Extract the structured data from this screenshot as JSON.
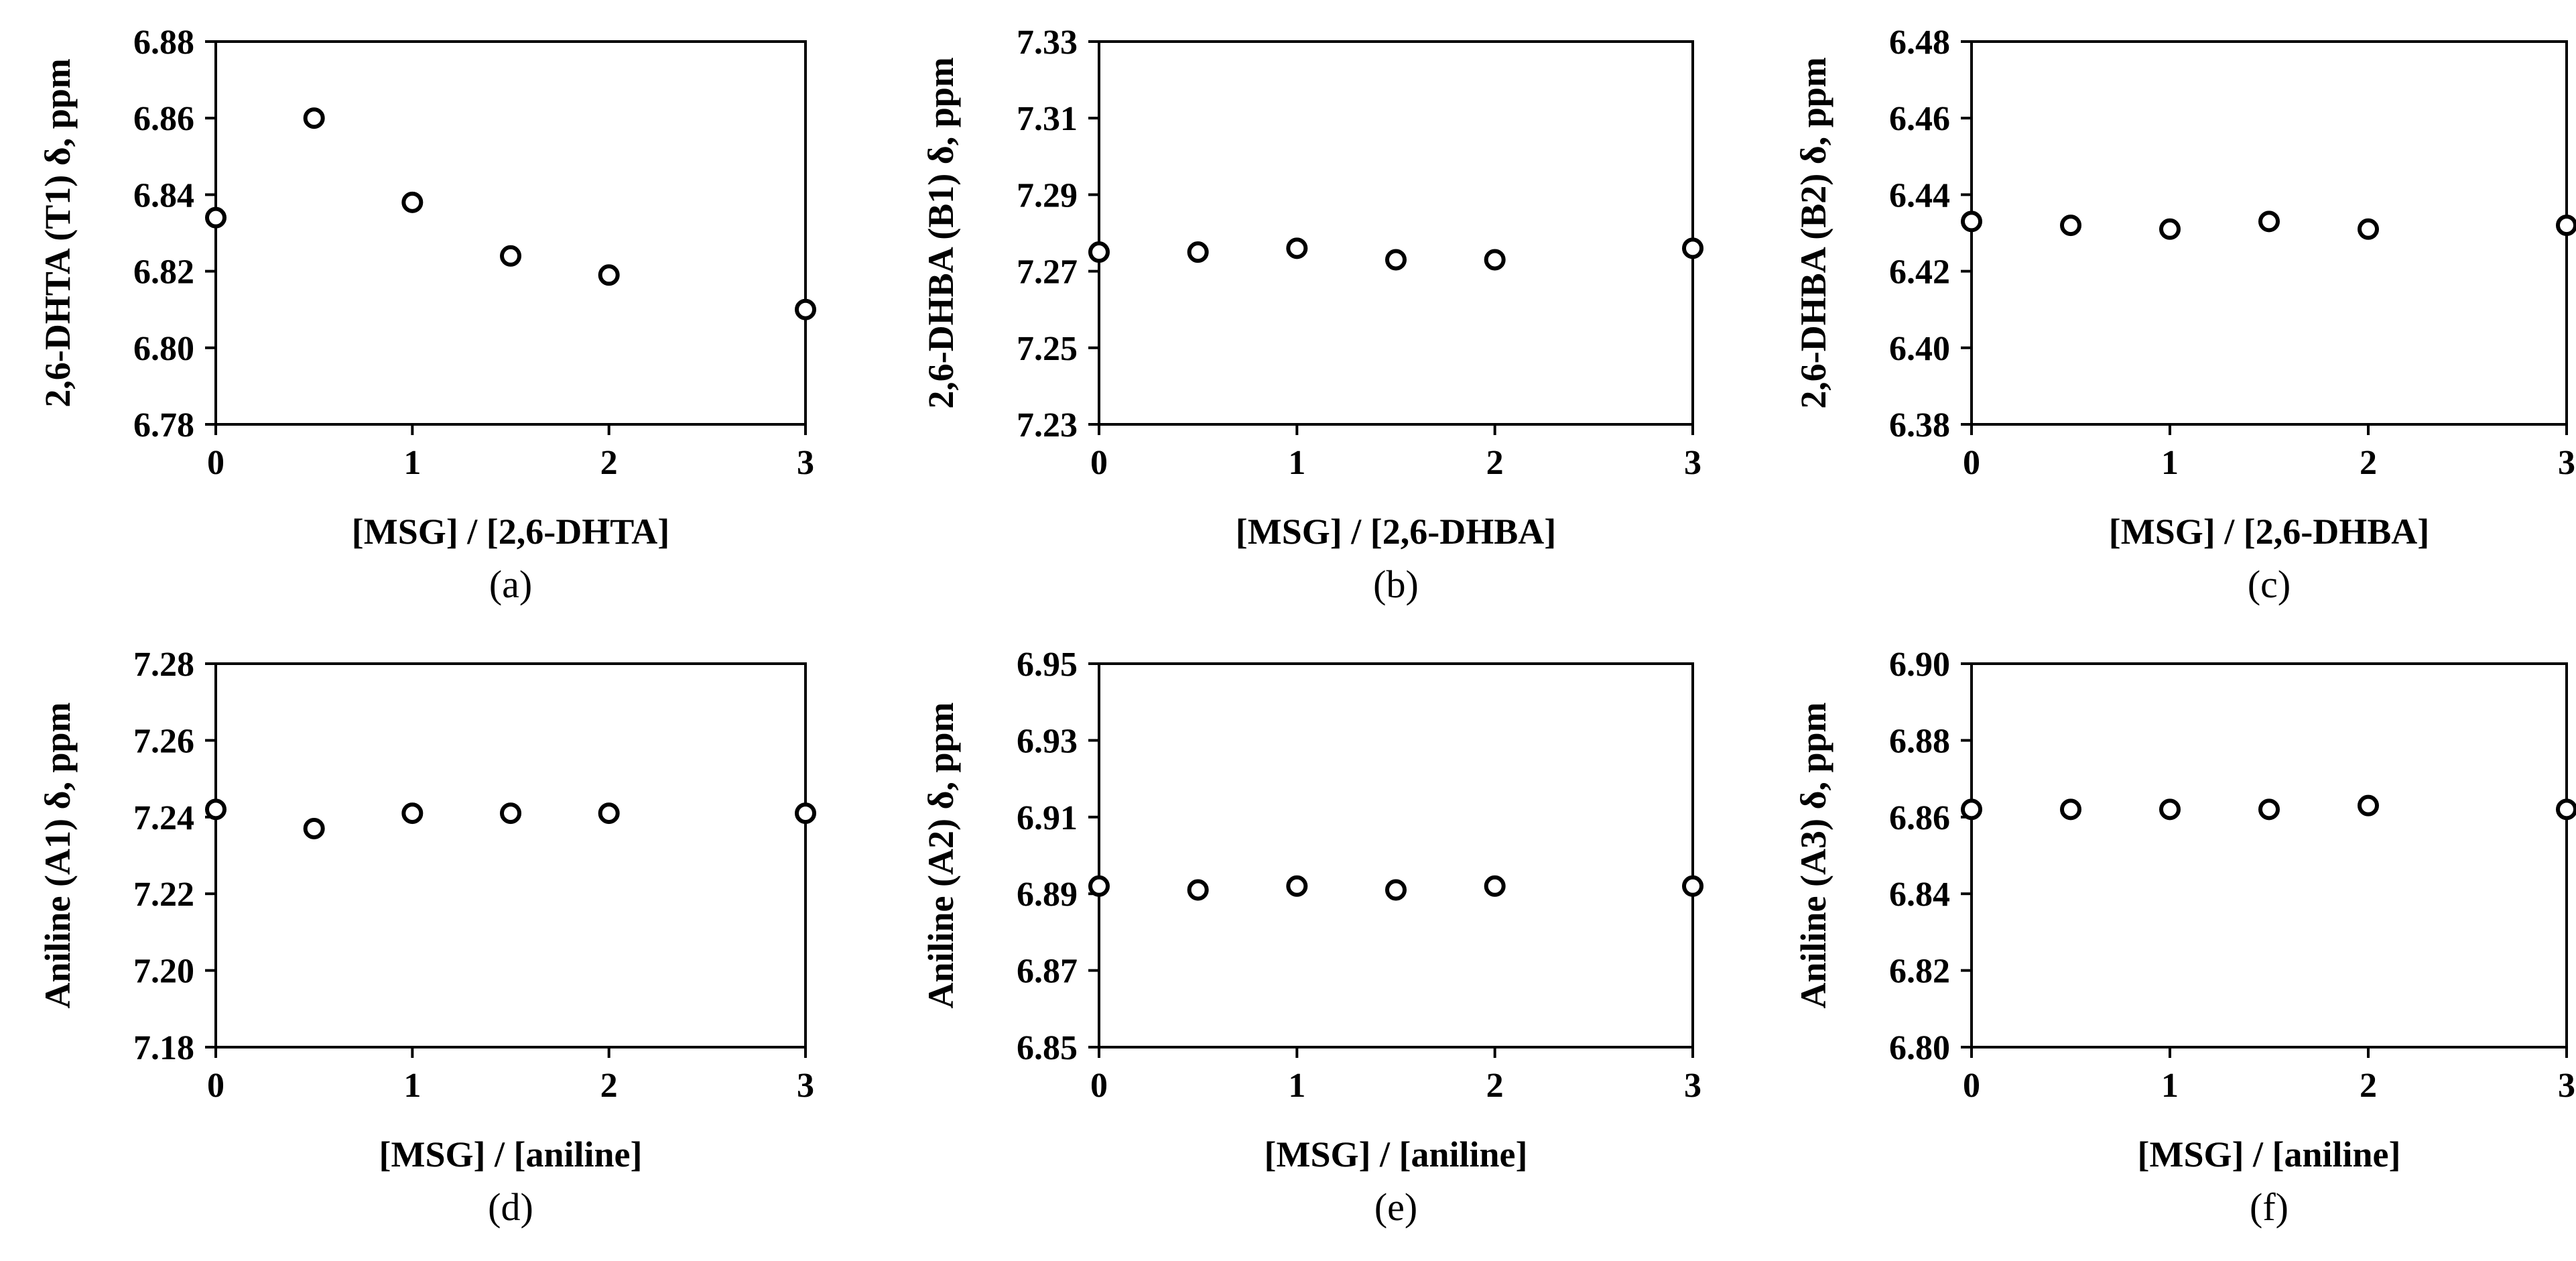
{
  "chart_data": [
    {
      "type": "scatter",
      "caption": "(a)",
      "xlabel": "[MSG] / [2,6-DHTA]",
      "ylabel": "2,6-DHTA (T1)  δ, ppm",
      "xlim": [
        0,
        3
      ],
      "ylim": [
        6.78,
        6.88
      ],
      "xticks": [
        "0",
        "1",
        "2",
        "3"
      ],
      "yticks": [
        "6.78",
        "6.80",
        "6.82",
        "6.84",
        "6.86",
        "6.88"
      ],
      "points": [
        [
          0,
          6.834
        ],
        [
          0.5,
          6.86
        ],
        [
          1,
          6.838
        ],
        [
          1.5,
          6.824
        ],
        [
          2,
          6.819
        ],
        [
          3,
          6.81
        ]
      ]
    },
    {
      "type": "scatter",
      "caption": "(b)",
      "xlabel": "[MSG] / [2,6-DHBA]",
      "ylabel": "2,6-DHBA (B1)  δ, ppm",
      "xlim": [
        0,
        3
      ],
      "ylim": [
        7.23,
        7.33
      ],
      "xticks": [
        "0",
        "1",
        "2",
        "3"
      ],
      "yticks": [
        "7.23",
        "7.25",
        "7.27",
        "7.29",
        "7.31",
        "7.33"
      ],
      "points": [
        [
          0,
          7.275
        ],
        [
          0.5,
          7.275
        ],
        [
          1,
          7.276
        ],
        [
          1.5,
          7.273
        ],
        [
          2,
          7.273
        ],
        [
          3,
          7.276
        ]
      ]
    },
    {
      "type": "scatter",
      "caption": "(c)",
      "xlabel": "[MSG] / [2,6-DHBA]",
      "ylabel": "2,6-DHBA (B2)  δ, ppm",
      "xlim": [
        0,
        3
      ],
      "ylim": [
        6.38,
        6.48
      ],
      "xticks": [
        "0",
        "1",
        "2",
        "3"
      ],
      "yticks": [
        "6.38",
        "6.40",
        "6.42",
        "6.44",
        "6.46",
        "6.48"
      ],
      "points": [
        [
          0,
          6.433
        ],
        [
          0.5,
          6.432
        ],
        [
          1,
          6.431
        ],
        [
          1.5,
          6.433
        ],
        [
          2,
          6.431
        ],
        [
          3,
          6.432
        ]
      ]
    },
    {
      "type": "scatter",
      "caption": "(d)",
      "xlabel": "[MSG] / [aniline]",
      "ylabel": "Aniline (A1)  δ, ppm",
      "xlim": [
        0,
        3
      ],
      "ylim": [
        7.18,
        7.28
      ],
      "xticks": [
        "0",
        "1",
        "2",
        "3"
      ],
      "yticks": [
        "7.18",
        "7.20",
        "7.22",
        "7.24",
        "7.26",
        "7.28"
      ],
      "points": [
        [
          0,
          7.242
        ],
        [
          0.5,
          7.237
        ],
        [
          1,
          7.241
        ],
        [
          1.5,
          7.241
        ],
        [
          2,
          7.241
        ],
        [
          3,
          7.241
        ]
      ]
    },
    {
      "type": "scatter",
      "caption": "(e)",
      "xlabel": "[MSG] / [aniline]",
      "ylabel": "Aniline (A2)  δ, ppm",
      "xlim": [
        0,
        3
      ],
      "ylim": [
        6.85,
        6.95
      ],
      "xticks": [
        "0",
        "1",
        "2",
        "3"
      ],
      "yticks": [
        "6.85",
        "6.87",
        "6.89",
        "6.91",
        "6.93",
        "6.95"
      ],
      "points": [
        [
          0,
          6.892
        ],
        [
          0.5,
          6.891
        ],
        [
          1,
          6.892
        ],
        [
          1.5,
          6.891
        ],
        [
          2,
          6.892
        ],
        [
          3,
          6.892
        ]
      ]
    },
    {
      "type": "scatter",
      "caption": "(f)",
      "xlabel": "[MSG] / [aniline]",
      "ylabel": "Aniline (A3)  δ, ppm",
      "xlim": [
        0,
        3
      ],
      "ylim": [
        6.8,
        6.9
      ],
      "xticks": [
        "0",
        "1",
        "2",
        "3"
      ],
      "yticks": [
        "6.80",
        "6.82",
        "6.84",
        "6.86",
        "6.88",
        "6.90"
      ],
      "points": [
        [
          0,
          6.862
        ],
        [
          0.5,
          6.862
        ],
        [
          1,
          6.862
        ],
        [
          1.5,
          6.862
        ],
        [
          2,
          6.863
        ],
        [
          3,
          6.862
        ]
      ]
    }
  ]
}
